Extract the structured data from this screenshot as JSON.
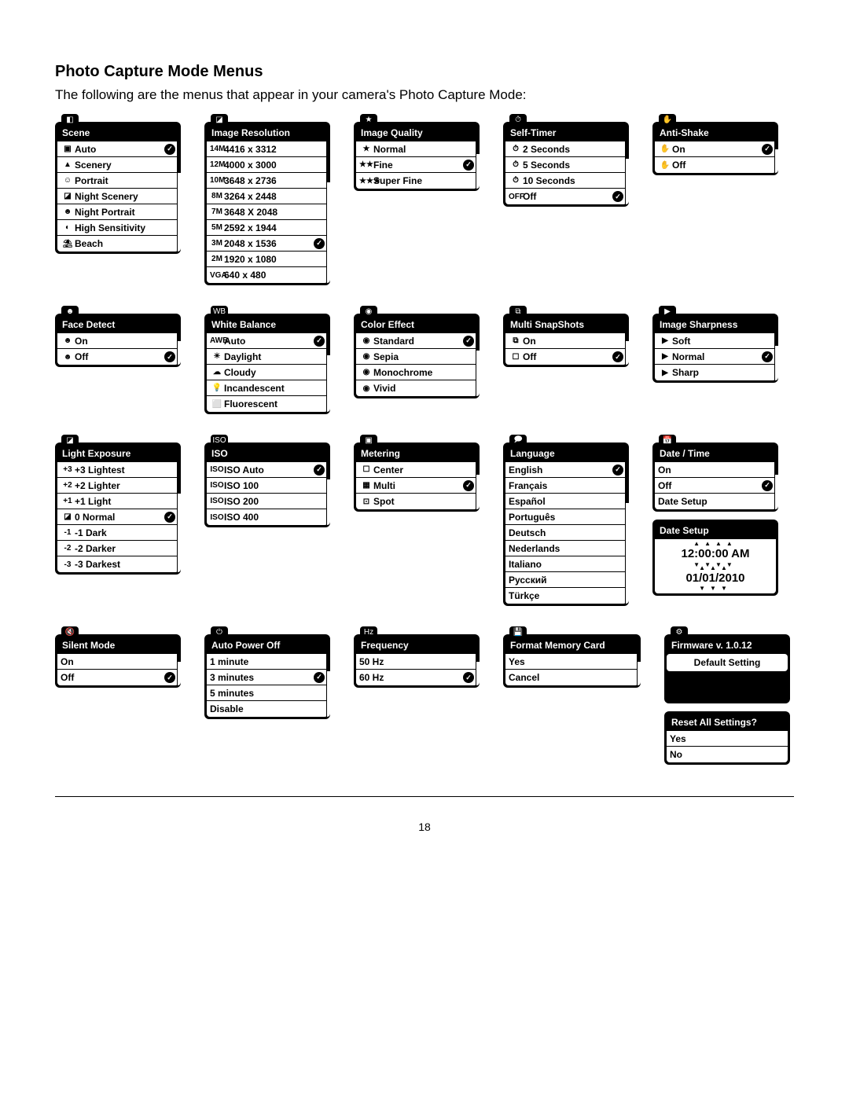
{
  "heading": "Photo Capture Mode Menus",
  "intro_text": "The following are the menus that appear in your camera's Photo Capture Mode:",
  "page_number": "18",
  "menus": {
    "scene": {
      "title": "Scene",
      "tab_icon": "◧",
      "items": [
        {
          "icon": "▣",
          "label": "Auto",
          "checked": true
        },
        {
          "icon": "▲",
          "label": "Scenery"
        },
        {
          "icon": "☺",
          "label": "Portrait"
        },
        {
          "icon": "◪",
          "label": "Night Scenery"
        },
        {
          "icon": "☻",
          "label": "Night Portrait"
        },
        {
          "icon": "◐",
          "label": "High Sensitivity"
        },
        {
          "icon": "⛱",
          "label": "Beach"
        }
      ],
      "scroll": true
    },
    "resolution": {
      "title": "Image Resolution",
      "tab_icon": "◪",
      "items": [
        {
          "icon": "14M",
          "label": "4416 x 3312"
        },
        {
          "icon": "12M",
          "label": "4000 x 3000"
        },
        {
          "icon": "10M",
          "label": "3648 x 2736"
        },
        {
          "icon": "8M",
          "label": "3264 x 2448"
        },
        {
          "icon": "7M",
          "label": "3648 X 2048"
        },
        {
          "icon": "5M",
          "label": "2592 x 1944"
        },
        {
          "icon": "3M",
          "label": "2048 x 1536",
          "checked": true
        },
        {
          "icon": "2M",
          "label": "1920 x 1080"
        },
        {
          "icon": "VGA",
          "label": "640 x 480"
        }
      ],
      "scroll": true
    },
    "quality": {
      "title": "Image Quality",
      "tab_icon": "★",
      "items": [
        {
          "icon": "★",
          "label": "Normal"
        },
        {
          "icon": "★★",
          "label": "Fine",
          "checked": true
        },
        {
          "icon": "★★★",
          "label": "Super Fine"
        }
      ],
      "scroll": true
    },
    "selftimer": {
      "title": "Self-Timer",
      "tab_icon": "⏱",
      "items": [
        {
          "icon": "⏱",
          "label": "2 Seconds"
        },
        {
          "icon": "⏱",
          "label": "5 Seconds"
        },
        {
          "icon": "⏱",
          "label": "10 Seconds"
        },
        {
          "icon": "OFF",
          "label": "Off",
          "checked": true
        }
      ],
      "scroll": true
    },
    "antishake": {
      "title": "Anti-Shake",
      "tab_icon": "✋",
      "items": [
        {
          "icon": "✋",
          "label": "On",
          "checked": true
        },
        {
          "icon": "✋",
          "label": "Off"
        }
      ],
      "scroll": true
    },
    "facedetect": {
      "title": "Face Detect",
      "tab_icon": "☻",
      "items": [
        {
          "icon": "☻",
          "label": "On"
        },
        {
          "icon": "☻",
          "label": "Off",
          "checked": true
        }
      ],
      "scroll": true
    },
    "whitebalance": {
      "title": "White Balance",
      "tab_icon": "WB",
      "items": [
        {
          "icon": "AWB",
          "label": "Auto",
          "checked": true
        },
        {
          "icon": "☀",
          "label": "Daylight"
        },
        {
          "icon": "☁",
          "label": "Cloudy"
        },
        {
          "icon": "💡",
          "label": "Incandescent"
        },
        {
          "icon": "⬜",
          "label": "Fluorescent"
        }
      ],
      "scroll": true
    },
    "coloreffect": {
      "title": "Color Effect",
      "tab_icon": "◉",
      "items": [
        {
          "icon": "◉",
          "label": "Standard",
          "checked": true
        },
        {
          "icon": "◉",
          "label": "Sepia"
        },
        {
          "icon": "◉",
          "label": "Monochrome"
        },
        {
          "icon": "◉",
          "label": "Vivid"
        }
      ],
      "scroll": true
    },
    "multisnap": {
      "title": "Multi SnapShots",
      "tab_icon": "⧉",
      "items": [
        {
          "icon": "⧉",
          "label": "On"
        },
        {
          "icon": "☐",
          "label": "Off",
          "checked": true
        }
      ],
      "scroll": true
    },
    "sharpness": {
      "title": "Image Sharpness",
      "tab_icon": "▶",
      "items": [
        {
          "icon": "▶",
          "label": "Soft"
        },
        {
          "icon": "▶",
          "label": "Normal",
          "checked": true
        },
        {
          "icon": "▶",
          "label": "Sharp"
        }
      ],
      "scroll": true
    },
    "exposure": {
      "title": "Light Exposure",
      "tab_icon": "◪",
      "items": [
        {
          "icon": "+3",
          "label": "+3 Lightest"
        },
        {
          "icon": "+2",
          "label": "+2 Lighter"
        },
        {
          "icon": "+1",
          "label": "+1 Light"
        },
        {
          "icon": "◪",
          "label": "0 Normal",
          "checked": true
        },
        {
          "icon": "-1",
          "label": "-1 Dark"
        },
        {
          "icon": "-2",
          "label": "-2 Darker"
        },
        {
          "icon": "-3",
          "label": "-3 Darkest"
        }
      ],
      "scroll": true
    },
    "iso": {
      "title": "ISO",
      "tab_icon": "ISO",
      "items": [
        {
          "icon": "ISO",
          "label": "ISO Auto",
          "checked": true
        },
        {
          "icon": "ISO",
          "label": "ISO 100"
        },
        {
          "icon": "ISO",
          "label": "ISO 200"
        },
        {
          "icon": "ISO",
          "label": "ISO 400"
        }
      ],
      "scroll": true
    },
    "metering": {
      "title": "Metering",
      "tab_icon": "▣",
      "items": [
        {
          "icon": "☐",
          "label": "Center"
        },
        {
          "icon": "▦",
          "label": "Multi",
          "checked": true
        },
        {
          "icon": "⊡",
          "label": "Spot"
        }
      ],
      "scroll": true
    },
    "language": {
      "title": "Language",
      "tab_icon": "🗩",
      "items": [
        {
          "icon": "",
          "label": "English",
          "checked": true
        },
        {
          "icon": "",
          "label": "Français"
        },
        {
          "icon": "",
          "label": "Español"
        },
        {
          "icon": "",
          "label": "Português"
        },
        {
          "icon": "",
          "label": "Deutsch"
        },
        {
          "icon": "",
          "label": "Nederlands"
        },
        {
          "icon": "",
          "label": "Italiano"
        },
        {
          "icon": "",
          "label": "Русский"
        },
        {
          "icon": "",
          "label": "Türkçe"
        }
      ],
      "scroll": true
    },
    "datetime": {
      "title": "Date / Time",
      "tab_icon": "📅",
      "items": [
        {
          "icon": "",
          "label": "On"
        },
        {
          "icon": "",
          "label": "Off",
          "checked": true
        },
        {
          "icon": "",
          "label": "Date Setup"
        }
      ],
      "scroll": true
    },
    "silent": {
      "title": "Silent Mode",
      "tab_icon": "🔇",
      "items": [
        {
          "icon": "",
          "label": "On"
        },
        {
          "icon": "",
          "label": "Off",
          "checked": true
        }
      ],
      "scroll": true
    },
    "autopower": {
      "title": "Auto Power Off",
      "tab_icon": "⏻",
      "items": [
        {
          "icon": "",
          "label": "1 minute"
        },
        {
          "icon": "",
          "label": "3 minutes",
          "checked": true
        },
        {
          "icon": "",
          "label": "5 minutes"
        },
        {
          "icon": "",
          "label": "Disable"
        }
      ],
      "scroll": true
    },
    "frequency": {
      "title": "Frequency",
      "tab_icon": "Hz",
      "items": [
        {
          "icon": "",
          "label": "50 Hz"
        },
        {
          "icon": "",
          "label": "60 Hz",
          "checked": true
        }
      ],
      "scroll": true
    },
    "format": {
      "title": "Format Memory Card",
      "tab_icon": "💾",
      "items": [
        {
          "icon": "",
          "label": "Yes"
        },
        {
          "icon": "",
          "label": "Cancel"
        }
      ],
      "scroll": true
    },
    "firmware": {
      "title": "Firmware v. 1.0.12",
      "tab_icon": "⚙",
      "default_label": "Default Setting"
    },
    "reset": {
      "title": "Reset All Settings?",
      "items": [
        {
          "icon": "",
          "label": "Yes"
        },
        {
          "icon": "",
          "label": "No"
        }
      ]
    },
    "datesetup": {
      "title": "Date Setup",
      "time": "12:00:00 AM",
      "date": "01/01/2010"
    }
  }
}
